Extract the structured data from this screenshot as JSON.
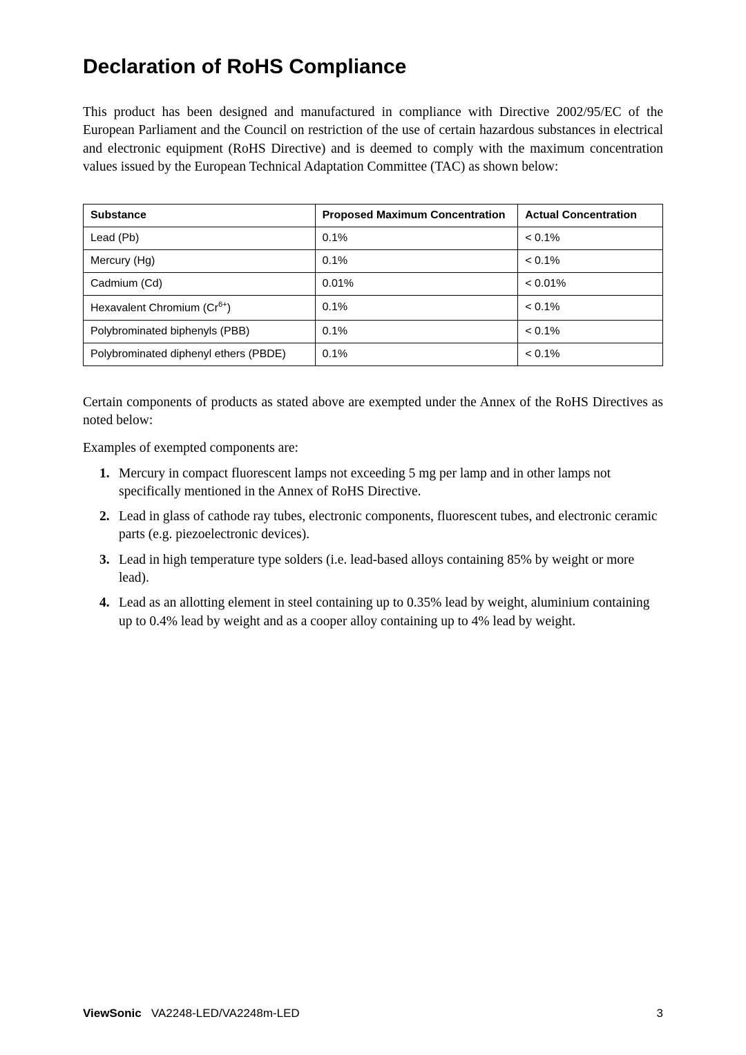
{
  "title": "Declaration of RoHS Compliance",
  "intro": "This product has been designed and manufactured in compliance with Directive 2002/95/EC of the European Parliament and the Council on restriction of the use of certain hazardous substances in electrical and electronic equipment (RoHS Directive) and is deemed to comply with the maximum concentration values issued by the European Technical Adaptation Committee (TAC) as shown below:",
  "table": {
    "headers": {
      "substance": "Substance",
      "proposed": "Proposed Maximum Concentration",
      "actual": "Actual Concentration"
    },
    "rows": [
      {
        "substance": "Lead (Pb)",
        "proposed": "0.1%",
        "actual": "< 0.1%"
      },
      {
        "substance": "Mercury (Hg)",
        "proposed": "0.1%",
        "actual": "< 0.1%"
      },
      {
        "substance": "Cadmium (Cd)",
        "proposed": "0.01%",
        "actual": "< 0.01%"
      },
      {
        "substance": "Hexavalent Chromium (Cr",
        "substance_sup": "6+",
        "substance_suffix": ")",
        "proposed": "0.1%",
        "actual": "< 0.1%"
      },
      {
        "substance": "Polybrominated biphenyls (PBB)",
        "proposed": "0.1%",
        "actual": "< 0.1%"
      },
      {
        "substance": "Polybrominated diphenyl ethers (PBDE)",
        "proposed": "0.1%",
        "actual": "< 0.1%"
      }
    ]
  },
  "exemptText": "Certain components of products as stated above are exempted under the Annex of the RoHS Directives as noted below:",
  "examplesText": "Examples of exempted components are:",
  "exemptions": [
    "Mercury in compact fluorescent lamps not exceeding 5 mg per lamp and in other lamps not specifically mentioned in the Annex of RoHS Directive.",
    "Lead in glass of cathode ray tubes, electronic components, fluorescent tubes, and electronic ceramic parts (e.g. piezoelectronic devices).",
    "Lead in high temperature type solders (i.e. lead-based alloys containing 85% by weight or more lead).",
    "Lead as an allotting element in steel containing up to 0.35% lead by weight, aluminium containing up to 0.4% lead by weight and as a cooper alloy containing up to 4% lead by weight."
  ],
  "footer": {
    "brand": "ViewSonic",
    "model": "VA2248-LED/VA2248m-LED",
    "page": "3"
  }
}
